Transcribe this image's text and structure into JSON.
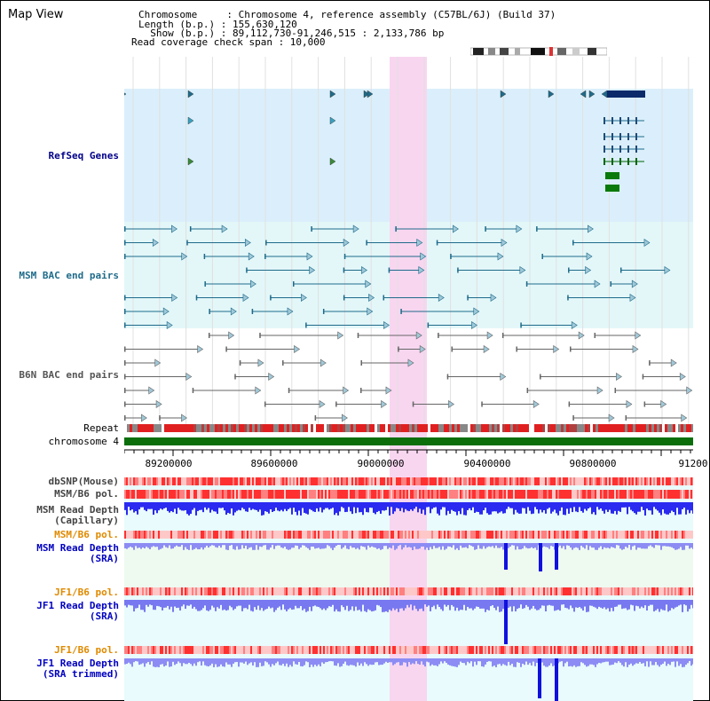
{
  "app": {
    "title": "Map View"
  },
  "header": {
    "chromosome_line": "Chromosome     : Chromosome 4, reference assembly (C57BL/6J) (Build 37)",
    "length_line": "Length (b.p.) : 155,630,120",
    "show_line": "  Show (b.p.) : 89,112,730-91,246,515 : 2,133,786 bp",
    "span_line": "Read coverage check span : 10,000"
  },
  "tracks": {
    "refseq": {
      "label": "RefSeq Genes",
      "color": "#00008b"
    },
    "msm_bac": {
      "label": "MSM BAC end pairs",
      "color": "#1f6b8a"
    },
    "b6n_bac": {
      "label": "B6N BAC end pairs",
      "color": "#555555"
    },
    "repeat": {
      "label": "Repeat"
    },
    "chromosome": {
      "label": "chromosome 4",
      "color": "#006400"
    },
    "dbsnp": {
      "label": "dbSNP(Mouse)"
    },
    "msm_b6_pol": {
      "label": "MSM/B6 pol."
    },
    "msm_depth_cap": {
      "label1": "MSM Read Depth",
      "label2": "(Capillary)"
    },
    "msm_b6_pol2": {
      "label": "MSM/B6 pol."
    },
    "msm_depth_sra": {
      "label1": "MSM Read Depth",
      "label2": "(SRA)"
    },
    "jf1_b6_pol": {
      "label": "JF1/B6 pol."
    },
    "jf1_depth_sra": {
      "label1": "JF1 Read Depth",
      "label2": "(SRA)"
    },
    "jf1_b6_pol2": {
      "label": "JF1/B6 pol."
    },
    "jf1_depth_trim": {
      "label1": "JF1 Read Depth",
      "label2": "(SRA trimmed)"
    }
  },
  "ruler": {
    "ticks": [
      "89200000",
      "89600000",
      "90000000",
      "90400000",
      "90800000",
      "91200"
    ]
  },
  "colors": {
    "refseq_bg": "#daeffb",
    "msm_bg": "#e3f7f9",
    "highlight": "#f8d6f0",
    "pol_red": "#ff4040",
    "depth_blue": "#1010ff",
    "orange_label": "#e08a00",
    "blue_label": "#0000c0",
    "gray_label": "#444444"
  }
}
